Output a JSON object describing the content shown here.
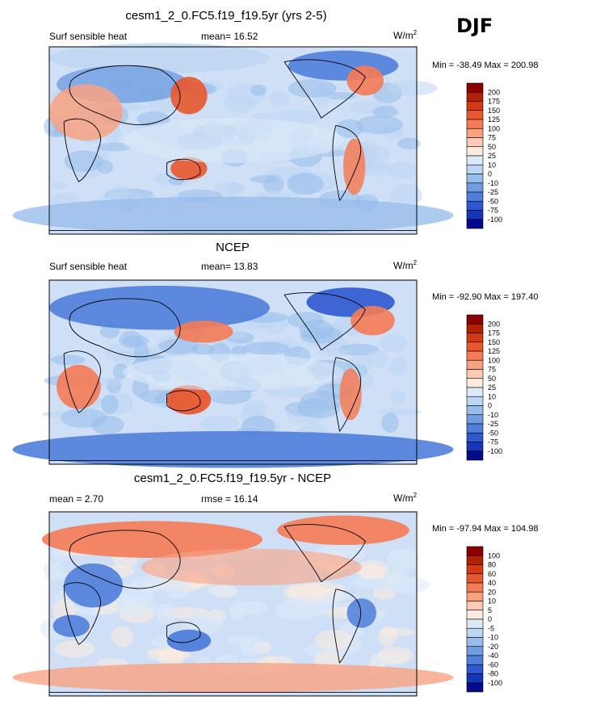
{
  "season": "DJF",
  "colors": {
    "cb_fill": [
      "#8B0000",
      "#B22000",
      "#D43A12",
      "#E8582E",
      "#F47B55",
      "#F9A283",
      "#FCCBB5",
      "#FDEBDF",
      "#DCEAF8",
      "#BDD6F3",
      "#98BDEB",
      "#6F9DE1",
      "#4F7EDB",
      "#2E58D0",
      "#1536B8",
      "#040A8B"
    ],
    "land": "#000000",
    "ocean_base": "#CFE0F6"
  },
  "chart_data": [
    {
      "type": "heatmap",
      "title": "cesm1_2_0.FC5.f19_f19.5yr (yrs 2-5)",
      "left_label": "Surf sensible heat",
      "mid_label": "mean=  16.52",
      "units": "W/m",
      "units_sup": "2",
      "minmax": "Min = -38.49 Max = 200.98",
      "levels": [
        "200",
        "175",
        "150",
        "125",
        "100",
        "75",
        "50",
        "25",
        "10",
        "0",
        "-10",
        "-25",
        "-50",
        "-75",
        "-100"
      ]
    },
    {
      "type": "heatmap",
      "title": "NCEP",
      "left_label": "Surf sensible heat",
      "mid_label": "mean=  13.83",
      "units": "W/m",
      "units_sup": "2",
      "minmax": "Min = -92.90 Max = 197.40",
      "levels": [
        "200",
        "175",
        "150",
        "125",
        "100",
        "75",
        "50",
        "25",
        "10",
        "0",
        "-10",
        "-25",
        "-50",
        "-75",
        "-100"
      ]
    },
    {
      "type": "heatmap",
      "title": "cesm1_2_0.FC5.f19_f19.5yr - NCEP",
      "left_label": "mean =   2.70",
      "mid_label": "rmse =  16.14",
      "units": "W/m",
      "units_sup": "2",
      "minmax": "Min = -97.94 Max = 104.98",
      "levels": [
        "100",
        "80",
        "60",
        "40",
        "20",
        "10",
        "5",
        "0",
        "-5",
        "-10",
        "-20",
        "-40",
        "-60",
        "-80",
        "-100"
      ]
    }
  ]
}
